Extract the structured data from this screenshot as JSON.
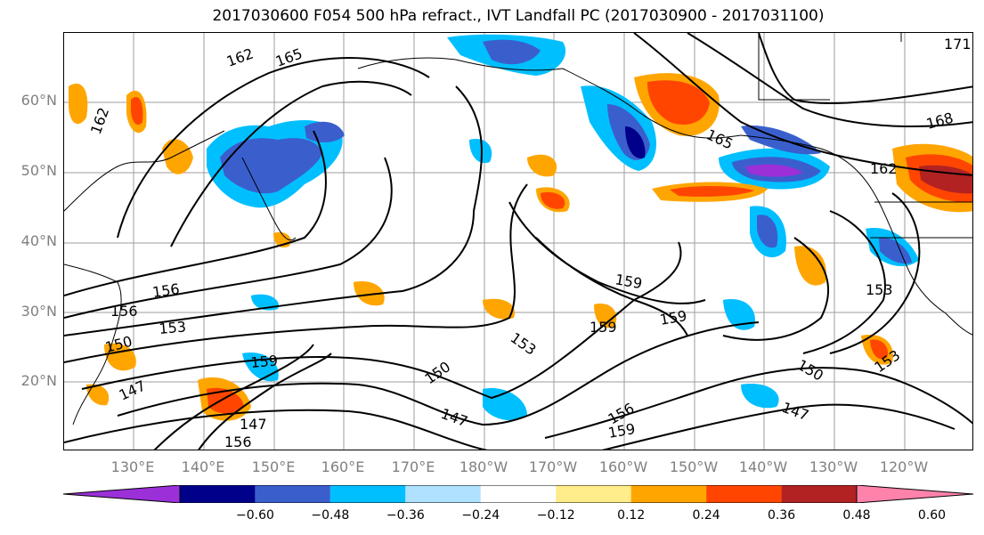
{
  "title": "2017030600 F054 500 hPa refract., IVT Landfall PC (2017030900 - 2017031100)",
  "latitude_labels": [
    "60°N",
    "50°N",
    "40°N",
    "30°N",
    "20°N"
  ],
  "longitude_labels": [
    "130°E",
    "140°E",
    "150°E",
    "160°E",
    "170°E",
    "180°W",
    "170°W",
    "160°W",
    "150°W",
    "140°W",
    "130°W",
    "120°W"
  ],
  "colorbar": {
    "ticks": [
      "−0.60",
      "−0.48",
      "−0.36",
      "−0.24",
      "−0.12",
      "0.12",
      "0.24",
      "0.36",
      "0.48",
      "0.60"
    ],
    "colors": [
      "#9b30d9",
      "#00008b",
      "#3a5fcd",
      "#00bfff",
      "#b0e2ff",
      "#ffffff",
      "#ffec8b",
      "#ffa500",
      "#ff4500",
      "#b22222",
      "#ff82ab"
    ]
  },
  "contour_labels": [
    "162",
    "165",
    "162",
    "171",
    "168",
    "165",
    "162",
    "156",
    "156",
    "153",
    "150",
    "159",
    "147",
    "147",
    "156",
    "159",
    "159",
    "159",
    "153",
    "150",
    "147",
    "156",
    "159",
    "153",
    "150",
    "147",
    "153"
  ]
}
